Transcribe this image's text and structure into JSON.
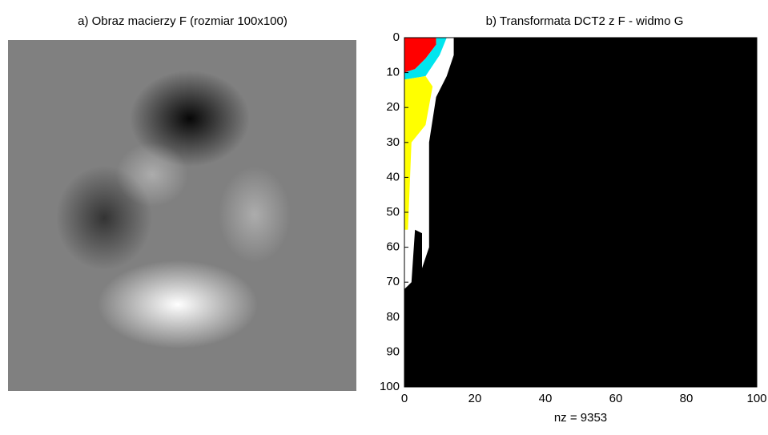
{
  "chart_data": [
    {
      "type": "image",
      "title": "a) Obraz macierzy F (rozmiar 100x100)"
    },
    {
      "type": "spy",
      "title": "b) Transformata DCT2 z F - widmo G",
      "xlabel": "nz = 9353",
      "xlim": [
        0,
        100
      ],
      "ylim": [
        0,
        100
      ],
      "y_reversed": true,
      "xticks": [
        0,
        20,
        40,
        60,
        80,
        100
      ],
      "yticks": [
        0,
        10,
        20,
        30,
        40,
        50,
        60,
        70,
        80,
        90,
        100
      ],
      "grid": false,
      "series": [
        {
          "color": "#000000",
          "x": [
            14,
            100,
            100,
            0,
            0,
            2,
            3,
            5,
            5,
            7,
            7,
            9,
            12,
            14
          ],
          "y": [
            0,
            0,
            100,
            100,
            72,
            70,
            55,
            56,
            66,
            60,
            30,
            17,
            11,
            5
          ]
        },
        {
          "color": "#ff0000",
          "x": [
            0,
            9,
            9,
            6,
            3,
            0
          ],
          "y": [
            0,
            0,
            2,
            6,
            9,
            10
          ]
        },
        {
          "color": "#00e5ee",
          "x": [
            0,
            3,
            6,
            9,
            9,
            12,
            10,
            6,
            0
          ],
          "y": [
            10,
            9,
            6,
            2,
            0,
            0,
            5,
            11,
            12
          ]
        },
        {
          "color": "#ffff00",
          "x": [
            0,
            6,
            8,
            6,
            2,
            1,
            0
          ],
          "y": [
            12,
            11,
            14,
            25,
            30,
            55,
            55
          ]
        }
      ]
    }
  ]
}
